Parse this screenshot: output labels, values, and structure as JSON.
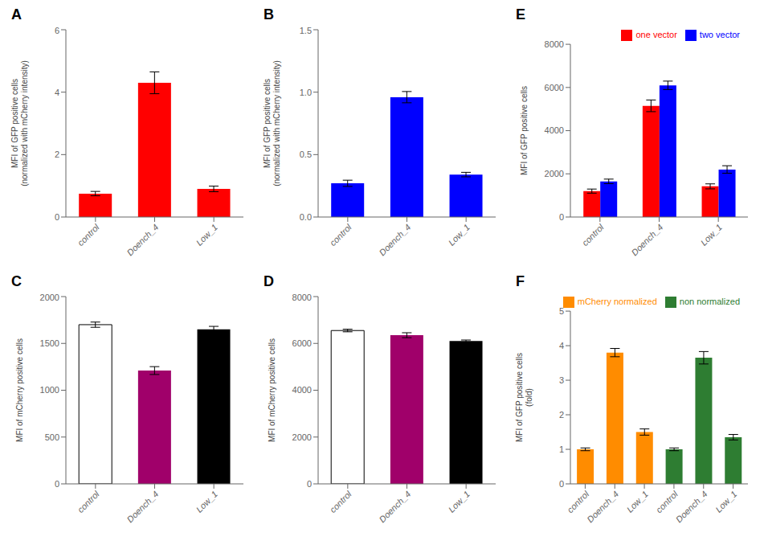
{
  "chart_data": [
    {
      "type": "bar",
      "title": "A",
      "categories": [
        "control",
        "Doench_4",
        "Low_1"
      ],
      "values": [
        0.75,
        4.3,
        0.9
      ],
      "errors": [
        0.07,
        0.35,
        0.09
      ],
      "colors": [
        "#FF0000",
        "#FF0000",
        "#FF0000"
      ],
      "ylabel": "MFI of GFP positive cells\n(normalized with mCherry intensity)",
      "ylim": [
        0,
        6
      ],
      "yticks": [
        0,
        2,
        4,
        6
      ]
    },
    {
      "type": "bar",
      "title": "B",
      "categories": [
        "control",
        "Doench_4",
        "Low_1"
      ],
      "values": [
        0.27,
        0.96,
        0.34
      ],
      "errors": [
        0.025,
        0.045,
        0.018
      ],
      "colors": [
        "#0000FF",
        "#0000FF",
        "#0000FF"
      ],
      "ylabel": "MFI of GFP positive cells\n(normalized with mCherry intensity)",
      "ylim": [
        0,
        1.5
      ],
      "yticks": [
        {
          "value": 0,
          "label": "0.0"
        },
        0.5,
        {
          "value": 1,
          "label": "1.0"
        },
        1.5
      ]
    },
    {
      "type": "bar",
      "title": "E",
      "categories": [
        "control",
        "Doench_4",
        "Low_1"
      ],
      "series": [
        {
          "name": "one vector",
          "color": "#FF0000",
          "values": [
            1200,
            5150,
            1420
          ],
          "errors": [
            95,
            270,
            115
          ]
        },
        {
          "name": "two vector",
          "color": "#0000FF",
          "values": [
            1650,
            6100,
            2200
          ],
          "errors": [
            105,
            195,
            175
          ]
        }
      ],
      "ylabel": "MFI of GFP positive cells",
      "ylim": [
        0,
        8000
      ],
      "yticks": [
        0,
        2000,
        4000,
        6000,
        8000
      ],
      "legend": "upper right"
    },
    {
      "type": "bar",
      "title": "C",
      "categories": [
        "control",
        "Doench_4",
        "Low_1"
      ],
      "values": [
        1700,
        1210,
        1650
      ],
      "errors": [
        28,
        42,
        32
      ],
      "colors": [
        "#FFFFFF",
        "#A0006A",
        "#000000"
      ],
      "ylabel": "MFI of mCherry positive cells",
      "ylim": [
        0,
        2000
      ],
      "yticks": [
        0,
        500,
        1000,
        1500,
        2000
      ]
    },
    {
      "type": "bar",
      "title": "D",
      "categories": [
        "control",
        "Doench_4",
        "Low_1"
      ],
      "values": [
        6550,
        6350,
        6100
      ],
      "errors": [
        55,
        105,
        45
      ],
      "colors": [
        "#FFFFFF",
        "#A0006A",
        "#000000"
      ],
      "ylabel": "MFI of mCherry positive cells",
      "ylim": [
        0,
        8000
      ],
      "yticks": [
        0,
        2000,
        4000,
        6000,
        8000
      ]
    },
    {
      "type": "bar",
      "title": "F",
      "categories": [
        "control",
        "Doench_4",
        "Low_1",
        "control",
        "Doench_4",
        "Low_1"
      ],
      "series": [
        {
          "name": "mCherry normalized",
          "color": "#FF8C00",
          "values": [
            1.0,
            3.8,
            1.5,
            null,
            null,
            null
          ],
          "errors": [
            0.04,
            0.12,
            0.09,
            null,
            null,
            null
          ]
        },
        {
          "name": "non normalized",
          "color": "#2E7D32",
          "values": [
            null,
            null,
            null,
            1.0,
            3.65,
            1.35
          ],
          "errors": [
            null,
            null,
            null,
            0.04,
            0.18,
            0.08
          ]
        }
      ],
      "stacked": true,
      "ylabel": "MFI of GFP positive cells\n(fold)",
      "ylim": [
        0,
        5
      ],
      "yticks": [
        0,
        1,
        2,
        3,
        4,
        5
      ],
      "legend": "upper right"
    }
  ]
}
